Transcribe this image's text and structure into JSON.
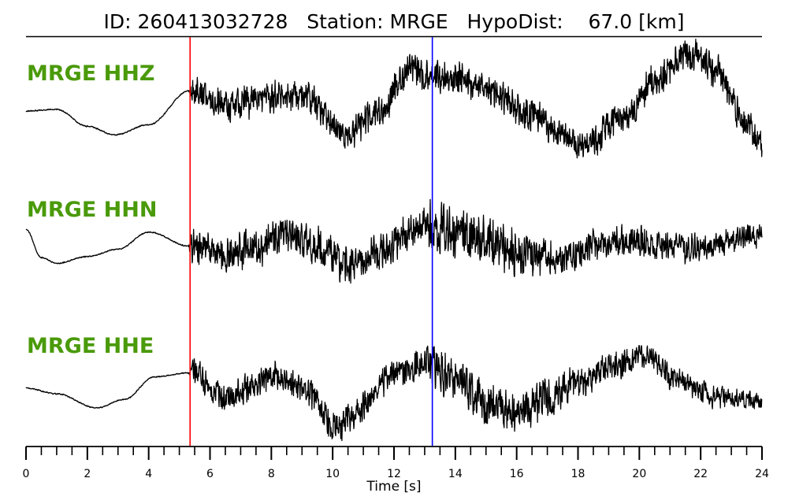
{
  "header": {
    "id_label": "ID:",
    "id_value": "260413032728",
    "station_label": "Station:",
    "station_value": "MRGE",
    "hypodist_label": "HypoDist:",
    "hypodist_value": "67.0",
    "hypodist_unit": "[km]"
  },
  "chart_data": {
    "type": "line",
    "title": "ID: 260413032728   Station: MRGE   HypoDist:    67.0 [km]",
    "xlabel": "Time [s]",
    "xlim": [
      0,
      24
    ],
    "x_major_ticks": [
      0,
      2,
      4,
      6,
      8,
      10,
      12,
      14,
      16,
      18,
      20,
      22,
      24
    ],
    "x_minor_tick_step": 0.5,
    "grid": false,
    "label_color": "#4a9a0a",
    "p_pick": {
      "time": 5.35,
      "color": "#ff0000"
    },
    "s_pick": {
      "time": 13.25,
      "color": "#0000ff"
    },
    "series": [
      {
        "name": "MRGE HHZ",
        "envelope": [
          [
            0,
            -0.18
          ],
          [
            1,
            -0.15
          ],
          [
            2,
            -0.45
          ],
          [
            2.9,
            -0.6
          ],
          [
            4,
            -0.42
          ],
          [
            5.35,
            0.18
          ],
          [
            6.5,
            -0.1
          ],
          [
            8,
            0.05
          ],
          [
            9,
            0.1
          ],
          [
            10.5,
            -0.55
          ],
          [
            11.5,
            -0.2
          ],
          [
            12.5,
            0.55
          ],
          [
            13.2,
            0.45
          ],
          [
            14,
            0.4
          ],
          [
            15,
            0.2
          ],
          [
            16.5,
            -0.25
          ],
          [
            17.5,
            -0.65
          ],
          [
            18.3,
            -0.75
          ],
          [
            19.5,
            -0.25
          ],
          [
            20.5,
            0.35
          ],
          [
            21.6,
            0.85
          ],
          [
            22.5,
            0.55
          ],
          [
            23.5,
            -0.4
          ],
          [
            24,
            -0.8
          ]
        ],
        "noise": [
          [
            0,
            0.012
          ],
          [
            5.3,
            0.012
          ],
          [
            5.45,
            0.32
          ],
          [
            24,
            0.32
          ]
        ]
      },
      {
        "name": "MRGE HHN",
        "envelope": [
          [
            0,
            0.15
          ],
          [
            0.5,
            -0.35
          ],
          [
            1,
            -0.45
          ],
          [
            2,
            -0.33
          ],
          [
            3,
            -0.2
          ],
          [
            4,
            0.1
          ],
          [
            5.35,
            -0.15
          ],
          [
            6.5,
            -0.3
          ],
          [
            7.5,
            -0.15
          ],
          [
            8.5,
            0.05
          ],
          [
            9.5,
            -0.15
          ],
          [
            10.5,
            -0.5
          ],
          [
            11.5,
            -0.25
          ],
          [
            12.5,
            0.1
          ],
          [
            13.2,
            0.2
          ],
          [
            14,
            0.1
          ],
          [
            15,
            -0.05
          ],
          [
            16.5,
            -0.3
          ],
          [
            17.5,
            -0.4
          ],
          [
            18.5,
            -0.15
          ],
          [
            19.5,
            -0.05
          ],
          [
            20.5,
            -0.1
          ],
          [
            21.5,
            -0.2
          ],
          [
            22.5,
            -0.15
          ],
          [
            23.5,
            0.05
          ],
          [
            24,
            0.02
          ]
        ],
        "noise": [
          [
            0,
            0.012
          ],
          [
            5.3,
            0.012
          ],
          [
            5.45,
            0.38
          ],
          [
            13,
            0.38
          ],
          [
            13.3,
            0.55
          ],
          [
            15.5,
            0.55
          ],
          [
            17,
            0.35
          ],
          [
            24,
            0.25
          ]
        ]
      },
      {
        "name": "MRGE HHE",
        "envelope": [
          [
            0,
            -0.15
          ],
          [
            1,
            -0.25
          ],
          [
            2.3,
            -0.5
          ],
          [
            3.2,
            -0.35
          ],
          [
            4.2,
            0.05
          ],
          [
            5.35,
            0.12
          ],
          [
            6.5,
            -0.3
          ],
          [
            7.3,
            -0.15
          ],
          [
            8,
            0.05
          ],
          [
            9,
            -0.15
          ],
          [
            10.2,
            -0.85
          ],
          [
            11,
            -0.45
          ],
          [
            12,
            0.1
          ],
          [
            13.2,
            0.3
          ],
          [
            14,
            0.0
          ],
          [
            15,
            -0.4
          ],
          [
            16,
            -0.6
          ],
          [
            17,
            -0.35
          ],
          [
            18,
            -0.05
          ],
          [
            19.2,
            0.25
          ],
          [
            20.2,
            0.45
          ],
          [
            21.2,
            0.0
          ],
          [
            22.5,
            -0.3
          ],
          [
            24,
            -0.35
          ]
        ],
        "noise": [
          [
            0,
            0.012
          ],
          [
            5.3,
            0.012
          ],
          [
            5.45,
            0.3
          ],
          [
            13,
            0.3
          ],
          [
            13.3,
            0.45
          ],
          [
            16.5,
            0.45
          ],
          [
            18,
            0.3
          ],
          [
            24,
            0.2
          ]
        ]
      }
    ]
  }
}
